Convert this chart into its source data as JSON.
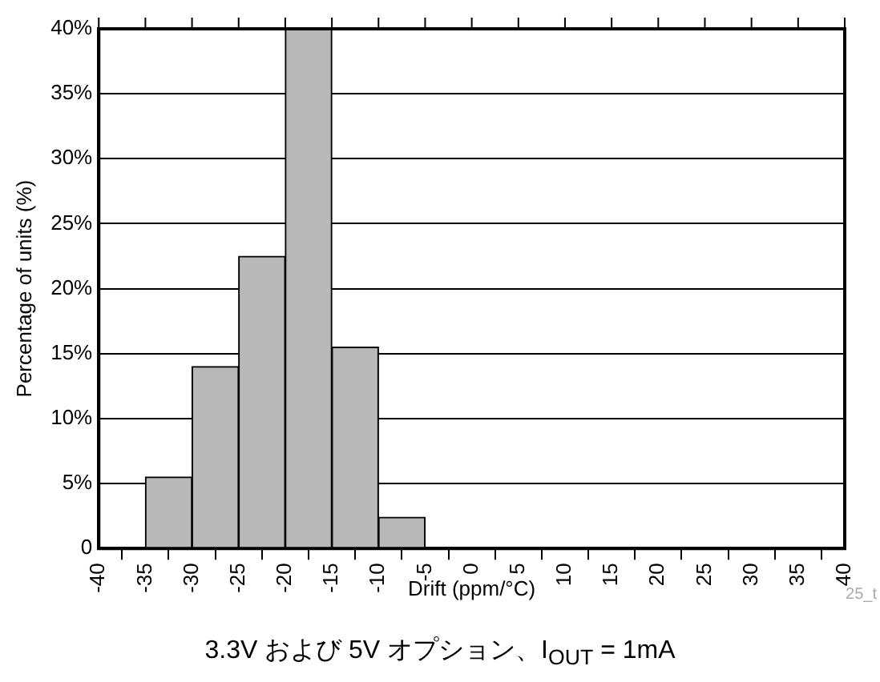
{
  "chart_data": {
    "type": "histogram",
    "xlabel": "Drift (ppm/°C)",
    "ylabel": "Percentage of units (%)",
    "bins": [
      -40,
      -35,
      -30,
      -25,
      -20,
      -15,
      -10,
      -5,
      0,
      5,
      10,
      15,
      20,
      25,
      30,
      35,
      40
    ],
    "values": [
      0,
      5.5,
      14,
      22.5,
      40,
      15.5,
      2.4,
      0,
      0,
      0,
      0,
      0,
      0,
      0,
      0,
      0
    ],
    "color": "#b8b8b8",
    "xlim": [
      -40,
      40
    ],
    "xticks": [
      -40,
      -35,
      -30,
      -25,
      -20,
      -15,
      -10,
      -5,
      0,
      5,
      10,
      15,
      20,
      25,
      30,
      35,
      40
    ],
    "ylim": [
      0,
      40
    ],
    "yticks": [
      {
        "value": 0,
        "label": "0"
      },
      {
        "value": 5,
        "label": "5%"
      },
      {
        "value": 10,
        "label": "10%"
      },
      {
        "value": 15,
        "label": "15%"
      },
      {
        "value": 20,
        "label": "20%"
      },
      {
        "value": 25,
        "label": "25%"
      },
      {
        "value": 30,
        "label": "30%"
      },
      {
        "value": 35,
        "label": "35%"
      },
      {
        "value": 40,
        "label": "40%"
      }
    ],
    "grid": "y",
    "legend": false,
    "annotations": [
      "25_t",
      "3.3V および 5V オプション、I$_{OUT}$ = 1mA"
    ]
  }
}
